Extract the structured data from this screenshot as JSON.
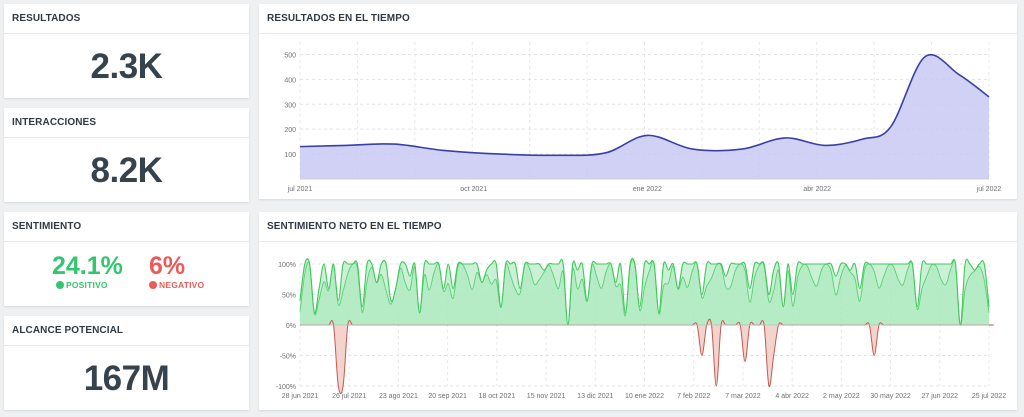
{
  "kpis": {
    "resultados": {
      "title": "RESULTADOS",
      "value": "2.3K"
    },
    "interacciones": {
      "title": "INTERACCIONES",
      "value": "8.2K"
    },
    "sentimiento": {
      "title": "SENTIMIENTO",
      "positive_value": "24.1%",
      "positive_label": "POSITIVO",
      "negative_value": "6%",
      "negative_label": "NEGATIVO"
    },
    "alcance": {
      "title": "ALCANCE POTENCIAL",
      "value": "167M"
    }
  },
  "colors": {
    "positive": "#34c66e",
    "negative": "#ec5a5a",
    "line": "#3a3fa6",
    "area": "#c8c9f2",
    "pos_line": "#3ec95a",
    "pos_area": "#b8ecc8",
    "neg_line": "#c45a4e",
    "neg_area": "#f1cfc8"
  },
  "chart_data": [
    {
      "type": "area",
      "title": "RESULTADOS EN EL TIEMPO",
      "xlabel": "",
      "ylabel": "",
      "x": [
        "2021-07-01",
        "2021-07-25",
        "2021-08-20",
        "2021-09-15",
        "2021-10-15",
        "2021-11-15",
        "2021-12-10",
        "2022-01-01",
        "2022-01-25",
        "2022-02-20",
        "2022-03-15",
        "2022-04-05",
        "2022-04-25",
        "2022-05-10",
        "2022-05-28",
        "2022-06-15",
        "2022-07-01"
      ],
      "values": [
        130,
        135,
        140,
        115,
        100,
        95,
        105,
        175,
        120,
        120,
        165,
        135,
        160,
        210,
        490,
        420,
        330
      ],
      "ylim": [
        0,
        550
      ],
      "yticks": [
        100,
        200,
        300,
        400,
        500
      ],
      "xtick_labels": [
        "jul 2021",
        "oct 2021",
        "ene 2022",
        "abr 2022",
        "jul 2022"
      ],
      "grid": true
    },
    {
      "type": "area",
      "title": "SENTIMIENTO NETO EN EL TIEMPO",
      "xlabel": "",
      "ylabel": "",
      "ylim": [
        -100,
        100
      ],
      "ytick_labels": [
        "100%",
        "50%",
        "0%",
        "-50%",
        "-100%"
      ],
      "xtick_labels": [
        "28 jun 2021",
        "26 jul 2021",
        "23 ago 2021",
        "20 sep 2021",
        "18 oct 2021",
        "15 nov 2021",
        "13 dic 2021",
        "10 ene 2022",
        "7 feb 2022",
        "7 mar 2022",
        "4 abr 2022",
        "2 may 2022",
        "30 may 2022",
        "27 jun 2022",
        "25 jul 2022"
      ],
      "series": [
        {
          "name": "positive",
          "values": [
            40,
            100,
            100,
            20,
            60,
            100,
            60,
            100,
            40,
            100,
            100,
            100,
            100,
            30,
            100,
            100,
            70,
            100,
            100,
            40,
            60,
            100,
            100,
            80,
            100,
            20,
            100,
            100,
            100,
            100,
            60,
            100,
            60,
            100,
            100,
            100,
            100,
            100,
            70,
            90,
            100,
            100,
            30,
            100,
            100,
            100,
            60,
            100,
            100,
            100,
            100,
            90,
            100,
            100,
            100,
            100,
            0,
            100,
            90,
            100,
            40,
            100,
            100,
            100,
            100,
            100,
            70,
            100,
            20,
            100,
            100,
            30,
            100,
            100,
            100,
            20,
            100,
            90,
            100,
            60,
            100,
            100,
            100,
            100,
            50,
            100,
            100,
            100,
            100,
            80,
            100,
            100,
            100,
            100,
            60,
            100,
            100,
            100,
            50,
            90,
            100,
            30,
            100,
            50,
            100,
            100,
            100,
            100,
            100,
            100,
            100,
            100,
            80,
            100,
            100,
            90,
            100,
            60,
            100,
            100,
            100,
            100,
            100,
            100,
            100,
            100,
            100,
            100,
            100,
            30,
            100,
            100,
            100,
            100,
            100,
            100,
            100,
            100,
            0,
            100,
            100,
            90,
            100,
            100,
            30
          ]
        },
        {
          "name": "negative",
          "values": [
            0,
            0,
            0,
            0,
            0,
            0,
            0,
            0,
            -100,
            -100,
            0,
            0,
            0,
            0,
            0,
            0,
            0,
            0,
            0,
            0,
            0,
            0,
            0,
            0,
            0,
            0,
            0,
            0,
            0,
            0,
            0,
            0,
            0,
            0,
            0,
            0,
            0,
            0,
            0,
            0,
            0,
            0,
            0,
            0,
            0,
            0,
            0,
            0,
            0,
            0,
            0,
            0,
            0,
            0,
            0,
            0,
            0,
            0,
            0,
            0,
            0,
            0,
            0,
            0,
            0,
            0,
            0,
            0,
            0,
            0,
            0,
            0,
            0,
            0,
            0,
            0,
            0,
            0,
            0,
            0,
            0,
            0,
            0,
            0,
            -50,
            0,
            0,
            -100,
            0,
            0,
            0,
            0,
            0,
            -60,
            0,
            0,
            0,
            0,
            -100,
            -50,
            0,
            0,
            0,
            0,
            0,
            0,
            0,
            0,
            0,
            0,
            0,
            0,
            0,
            0,
            0,
            0,
            0,
            0,
            0,
            0,
            -50,
            0,
            0,
            0,
            0,
            0,
            0,
            0,
            0,
            0,
            0,
            0,
            0,
            0,
            0,
            0,
            0,
            0,
            0,
            0,
            0,
            0,
            0,
            0,
            0,
            0
          ]
        }
      ],
      "grid": true
    }
  ]
}
